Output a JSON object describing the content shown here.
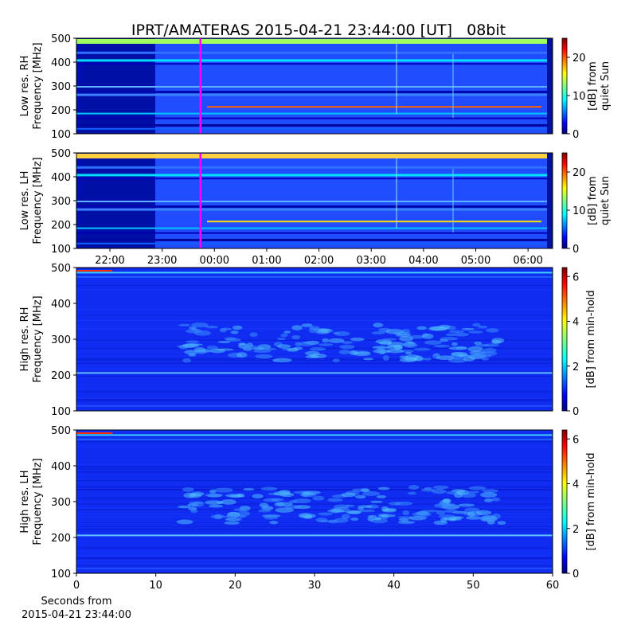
{
  "chart_data": [
    {
      "type": "spectrogram",
      "title": "IPRT/AMATERAS 2015-04-21 23:44:00 [UT]   08bit",
      "ylabel": [
        "Low res. RH",
        "Frequency [MHz]"
      ],
      "ylim": [
        100,
        500
      ],
      "yticks": [
        100,
        200,
        300,
        400,
        500
      ],
      "xlim": [
        21.36,
        30.47
      ],
      "marker_x": 23.733,
      "marker_color": "#ff00ff",
      "colorbar": {
        "label": [
          "[dB] from",
          "quiet Sun"
        ],
        "lim": [
          0,
          25
        ],
        "ticks": [
          0,
          10,
          20
        ]
      }
    },
    {
      "type": "spectrogram",
      "ylabel": [
        "Low res. LH",
        "Frequency [MHz]"
      ],
      "ylim": [
        100,
        500
      ],
      "yticks": [
        100,
        200,
        300,
        400,
        500
      ],
      "xlim": [
        21.36,
        30.47
      ],
      "xticks": [
        {
          "value": 22,
          "label": "22:00"
        },
        {
          "value": 23,
          "label": "23:00"
        },
        {
          "value": 24,
          "label": "00:00"
        },
        {
          "value": 25,
          "label": "01:00"
        },
        {
          "value": 26,
          "label": "02:00"
        },
        {
          "value": 27,
          "label": "03:00"
        },
        {
          "value": 28,
          "label": "04:00"
        },
        {
          "value": 29,
          "label": "05:00"
        },
        {
          "value": 30,
          "label": "06:00"
        }
      ],
      "marker_x": 23.733,
      "marker_color": "#ff00ff",
      "colorbar": {
        "label": [
          "[dB] from",
          "quiet Sun"
        ],
        "lim": [
          0,
          25
        ],
        "ticks": [
          0,
          10,
          20
        ]
      }
    },
    {
      "type": "spectrogram",
      "ylabel": [
        "High res. RH",
        "Frequency [MHz]"
      ],
      "ylim": [
        100,
        500
      ],
      "yticks": [
        100,
        200,
        300,
        400,
        500
      ],
      "xlim": [
        0,
        60
      ],
      "colorbar": {
        "label": [
          "[dB] from min-hold"
        ],
        "lim": [
          0,
          6.4
        ],
        "ticks": [
          0,
          2,
          4,
          6
        ]
      }
    },
    {
      "type": "spectrogram",
      "ylabel": [
        "High res. LH",
        "Frequency [MHz]"
      ],
      "ylim": [
        100,
        500
      ],
      "yticks": [
        100,
        200,
        300,
        400,
        500
      ],
      "xlim": [
        0,
        60
      ],
      "xticks": [
        0,
        10,
        20,
        30,
        40,
        50,
        60
      ],
      "xlabel": [
        "Seconds from",
        "2015-04-21 23:44:00"
      ],
      "colorbar": {
        "label": [
          "[dB] from min-hold"
        ],
        "lim": [
          0,
          6.4
        ],
        "ticks": [
          0,
          2,
          4,
          6
        ]
      }
    }
  ]
}
